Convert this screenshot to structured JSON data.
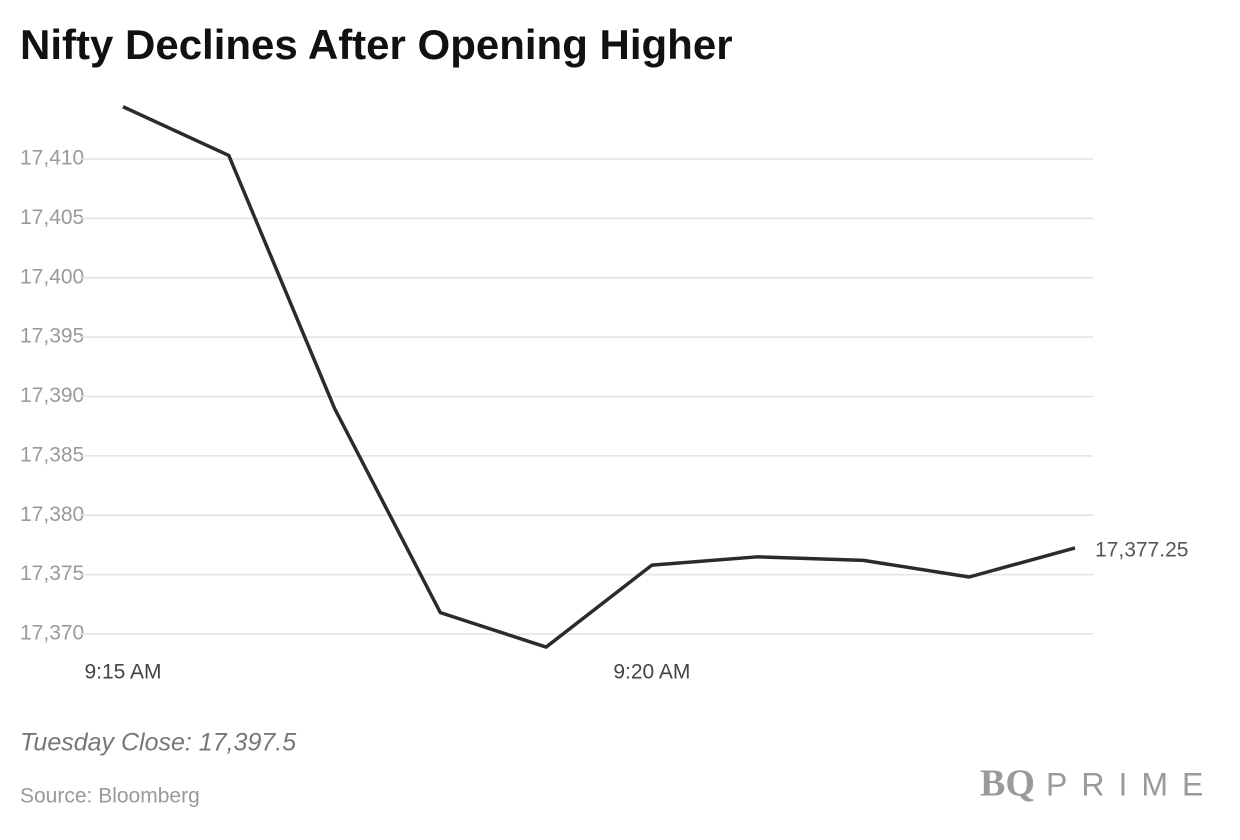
{
  "chart_data": {
    "type": "line",
    "title": "Nifty Declines After Opening Higher",
    "categories": [
      "9:15 AM",
      null,
      null,
      null,
      null,
      "9:20 AM",
      null,
      null,
      null,
      null
    ],
    "series": [
      {
        "color": "#2e2a28",
        "values": [
          17414.4,
          17410.3,
          17389.0,
          17371.8,
          17368.9,
          17375.8,
          17376.5,
          17376.2,
          17374.8,
          17377.25
        ],
        "value_labels": [
          null,
          null,
          null,
          null,
          null,
          null,
          null,
          null,
          null,
          "17,377.25"
        ]
      }
    ],
    "ylim": [
      17368,
      17416
    ],
    "yticks": [
      {
        "value": 17370,
        "label": "17,370"
      },
      {
        "value": 17375,
        "label": "17,375"
      },
      {
        "value": 17380,
        "label": "17,380"
      },
      {
        "value": 17385,
        "label": "17,385"
      },
      {
        "value": 17390,
        "label": "17,390"
      },
      {
        "value": 17395,
        "label": "17,395"
      },
      {
        "value": 17400,
        "label": "17,400"
      },
      {
        "value": 17405,
        "label": "17,405"
      },
      {
        "value": 17410,
        "label": "17,410"
      }
    ],
    "grid": true,
    "note": "Tuesday Close: 17,397.5",
    "source": "Source: Bloomberg",
    "logo": {
      "mark": "BQ",
      "word": "PRIME"
    }
  }
}
